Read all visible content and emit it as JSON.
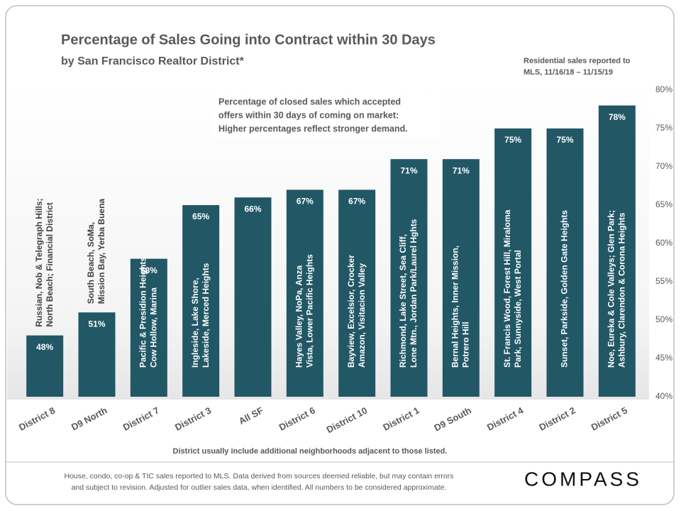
{
  "chart_data": {
    "type": "bar",
    "title": "Percentage of Sales Going into Contract within 30 Days",
    "subtitle": "by San Francisco Realtor District*",
    "source_note": [
      "Residential sales reported to",
      "MLS, 11/16/18 – 11/15/19"
    ],
    "callout": [
      "Percentage of closed sales which accepted",
      "offers within 30 days of coming on market:",
      "Higher percentages reflect stronger demand."
    ],
    "categories": [
      "District 8",
      "D9 North",
      "District 7",
      "District 3",
      "All SF",
      "District 6",
      "District 10",
      "District 1",
      "D9 South",
      "District 4",
      "District 2",
      "District 5"
    ],
    "values": [
      48,
      51,
      58,
      65,
      66,
      67,
      67,
      71,
      71,
      75,
      75,
      78
    ],
    "value_labels": [
      "48%",
      "51%",
      "58%",
      "65%",
      "66%",
      "67%",
      "67%",
      "71%",
      "71%",
      "75%",
      "75%",
      "78%"
    ],
    "bar_notes": [
      [
        "Russian, Nob & Telegraph Hills;",
        "North Beach; Financial District"
      ],
      [
        "South Beach, SoMa,",
        "Mission Bay, Yerba Buena"
      ],
      [
        "Pacific & Presidion Heights,",
        "Cow Hollow, Marina"
      ],
      [
        "Ingleside, Lake Shore,",
        "Lakeside, Merced Heights"
      ],
      null,
      [
        "Hayes Valley, NoPa, Anza",
        "Vista, Lower Pacific Heights"
      ],
      [
        "Bayview, Excelsior, Crocker",
        "Amazon, Visitacion Valley"
      ],
      [
        "Richmond, Lake Street, Sea Cliff,",
        "Lone Mtn., Jordan Park/Laurel Hghts"
      ],
      [
        "Bernal Heights, Inner Mission,",
        "Potrero Hill"
      ],
      [
        "St. Francis Wood, Forest Hill, Miraloma",
        "Park, Sunnyside, West Portal"
      ],
      [
        "Sunset, Parkside, Golden Gate Heights"
      ],
      [
        "Noe, Eureka & Cole Valleys; Glen Park;",
        "Ashbury, Clarendon & Corona Heights"
      ]
    ],
    "color": "#225766",
    "ylim": [
      40,
      80
    ],
    "yticks": [
      {
        "value": 40,
        "label": "40%"
      },
      {
        "value": 45,
        "label": "45%"
      },
      {
        "value": 50,
        "label": "50%"
      },
      {
        "value": 55,
        "label": "55%"
      },
      {
        "value": 60,
        "label": "60%"
      },
      {
        "value": 65,
        "label": "65%"
      },
      {
        "value": 70,
        "label": "70%"
      },
      {
        "value": 75,
        "label": "75%"
      },
      {
        "value": 80,
        "label": "80%"
      }
    ],
    "footnote": "District usually include additional neighborhoods adjacent to those listed.",
    "disclaimer": [
      "House, condo, co-op & TIC sales reported to MLS. Data derived from sources deemed reliable, but may contain errors",
      "and subject to revision. Adjusted for outlier sales data, when identified. All numbers to be considered approximate."
    ],
    "logo": "COMPASS"
  }
}
